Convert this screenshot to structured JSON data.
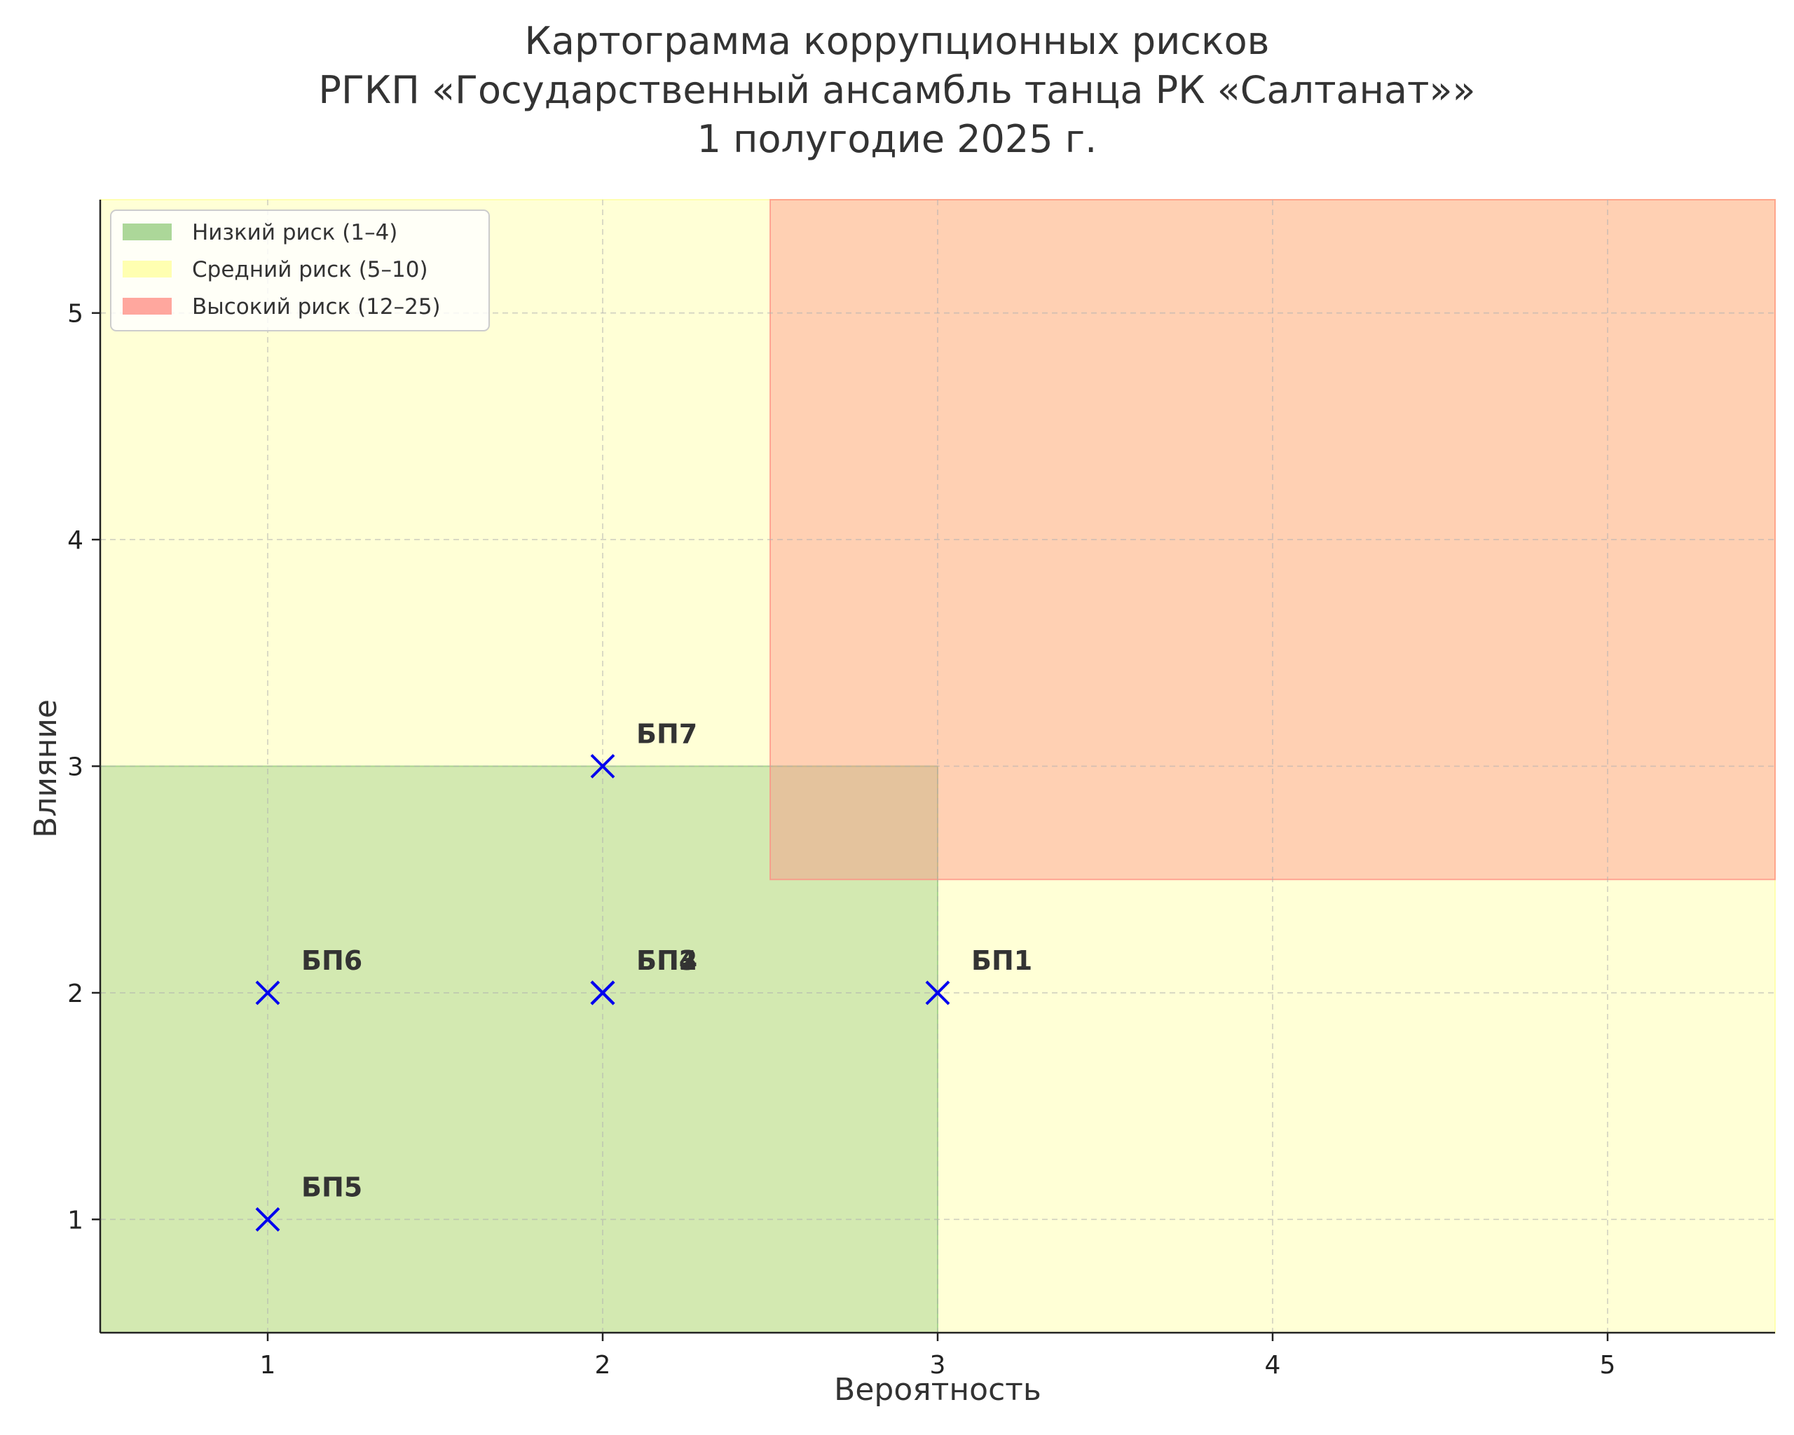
{
  "chart_data": {
    "type": "scatter",
    "title_lines": [
      "Картограмма коррупционных рисков",
      "РГКП «Государственный ансамбль танца РК «Салтанат»»",
      "1 полугодие 2025 г."
    ],
    "xlabel": "Вероятность",
    "ylabel": "Влияние",
    "xlim": [
      0.5,
      5.5
    ],
    "ylim": [
      0.5,
      5.5
    ],
    "xticks": [
      1,
      2,
      3,
      4,
      5
    ],
    "yticks": [
      1,
      2,
      3,
      4,
      5
    ],
    "grid": true,
    "legend_position": "top-left",
    "zones": [
      {
        "label": "Низкий риск (1–4)",
        "color": "#90c97a",
        "x_range": [
          0.5,
          3.0
        ],
        "y_range": [
          0.5,
          3.0
        ]
      },
      {
        "label": "Средний риск (5–10)",
        "color": "#ffff99",
        "x_range": [
          0.5,
          5.5
        ],
        "y_range": [
          0.5,
          5.5
        ]
      },
      {
        "label": "Высокий риск (12–25)",
        "color": "#ff8a80",
        "x_range": [
          2.5,
          5.5
        ],
        "y_range": [
          2.5,
          5.5
        ]
      }
    ],
    "points": [
      {
        "label": "БП1",
        "x": 3,
        "y": 2
      },
      {
        "label": "БП2",
        "x": 2,
        "y": 2
      },
      {
        "label": "БП3",
        "x": 2,
        "y": 2
      },
      {
        "label": "БП4",
        "x": 2,
        "y": 2
      },
      {
        "label": "БП5",
        "x": 1,
        "y": 1
      },
      {
        "label": "БП6",
        "x": 1,
        "y": 2
      },
      {
        "label": "БП7",
        "x": 2,
        "y": 3
      }
    ],
    "marker_color": "#0000ee",
    "point_label_color": "#333333"
  }
}
